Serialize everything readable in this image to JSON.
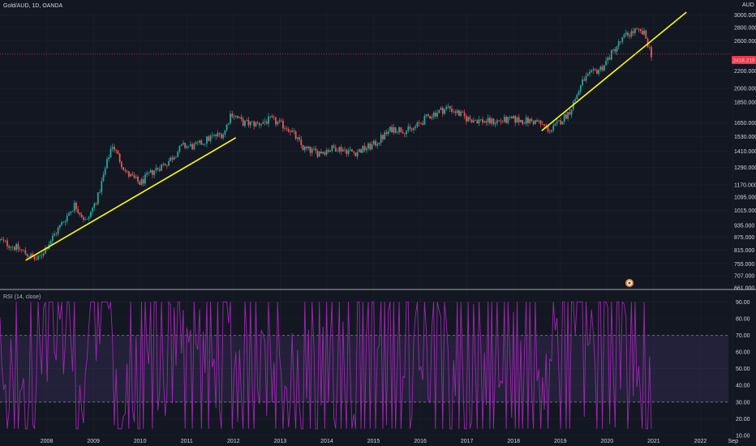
{
  "header": {
    "symbol_title": "Gold/AUD, 1D, OANDA",
    "currency": "AUD"
  },
  "price_panel": {
    "current_price": "2418.219",
    "y_ticks": [
      "3000.000",
      "2800.000",
      "2600.000",
      "2200.000",
      "2000.000",
      "1850.000",
      "1650.000",
      "1530.000",
      "1410.000",
      "1290.000",
      "1170.000",
      "1095.000",
      "1015.000",
      "935.000",
      "875.000",
      "815.000",
      "755.000",
      "707.000",
      "661.000"
    ]
  },
  "rsi_panel": {
    "title": "RSI (14, close)",
    "y_ticks": [
      "90.00",
      "80.00",
      "70.00",
      "60.00",
      "50.00",
      "40.00",
      "30.00",
      "20.00",
      "10.00"
    ]
  },
  "x_axis": {
    "ticks": [
      "2008",
      "2009",
      "2010",
      "2011",
      "2012",
      "2013",
      "2014",
      "2015",
      "2016",
      "2017",
      "2018",
      "2019",
      "2020",
      "2021",
      "2022",
      "Sep"
    ]
  },
  "colors": {
    "background": "#131722",
    "up_candle": "#26a69a",
    "down_candle": "#ef5350",
    "trendline": "#ffff00",
    "rsi_line": "#9c27b0",
    "rsi_band": "#7e57c2",
    "price_line": "#f23645"
  },
  "chart_data": {
    "type": "line",
    "title": "Gold/AUD, 1D, OANDA",
    "price_series": {
      "name": "Gold/AUD",
      "x": [
        2007.0,
        2007.4,
        2007.8,
        2008.2,
        2008.6,
        2008.85,
        2009.1,
        2009.4,
        2009.7,
        2010.0,
        2010.3,
        2010.6,
        2010.9,
        2011.2,
        2011.5,
        2011.8,
        2011.95,
        2012.2,
        2012.5,
        2012.8,
        2013.2,
        2013.5,
        2013.8,
        2014.2,
        2014.6,
        2015.0,
        2015.4,
        2015.8,
        2016.2,
        2016.6,
        2017.0,
        2017.5,
        2018.0,
        2018.5,
        2018.8,
        2019.2,
        2019.5,
        2019.9,
        2020.2,
        2020.4,
        2020.6,
        2020.8,
        2020.95
      ],
      "y": [
        860,
        820,
        770,
        900,
        1050,
        950,
        1100,
        1470,
        1250,
        1180,
        1270,
        1330,
        1450,
        1450,
        1520,
        1560,
        1750,
        1650,
        1640,
        1680,
        1600,
        1430,
        1400,
        1440,
        1400,
        1460,
        1600,
        1580,
        1720,
        1800,
        1690,
        1660,
        1680,
        1660,
        1580,
        1760,
        2100,
        2250,
        2520,
        2680,
        2750,
        2700,
        2418
      ]
    },
    "rsi_series": {
      "name": "RSI (14, close)",
      "overbought": 70,
      "oversold": 30,
      "ylim": [
        10,
        95
      ]
    },
    "trendlines": [
      {
        "x": [
          2007.55,
          2012.05
        ],
        "y": [
          770,
          1520
        ]
      },
      {
        "x": [
          2018.6,
          2021.7
        ],
        "y": [
          1580,
          3050
        ]
      }
    ],
    "ylim": [
      661,
      3050
    ],
    "xlim": [
      2007.0,
      2022.6
    ]
  }
}
